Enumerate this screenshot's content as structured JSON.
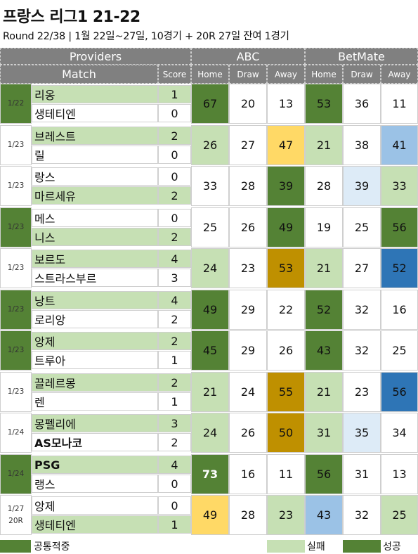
{
  "title": "프랑스 리그1 21-22",
  "subtitle": "Round 22/38  | 1월 22일~27일, 10경기 + 20R 27일 잔여 1경기",
  "headers": {
    "providers": "Providers",
    "match": "Match",
    "score": "Score",
    "abc": "ABC",
    "betmate": "BetMate",
    "home": "Home",
    "draw": "Draw",
    "away": "Away"
  },
  "colors": {
    "dark_green": "#548235",
    "light_green": "#c6e0b4",
    "yellow": "#ffd966",
    "gold": "#bf9000",
    "light_blue": "#9bc2e6",
    "pale_blue": "#ddebf7",
    "blue": "#2e75b6",
    "header_gray": "#808080"
  },
  "matches": [
    {
      "date": "1/22",
      "round": "",
      "date_bg": "#548235",
      "home": {
        "name": "리옹",
        "score": "1",
        "hl": true,
        "bold": false
      },
      "away": {
        "name": "생테티엔",
        "score": "0",
        "hl": false,
        "bold": false
      },
      "abc": [
        {
          "v": "67",
          "bg": "#548235",
          "fg": "#111"
        },
        {
          "v": "20",
          "bg": "#ffffff",
          "fg": "#111"
        },
        {
          "v": "13",
          "bg": "#ffffff",
          "fg": "#111"
        }
      ],
      "bm": [
        {
          "v": "53",
          "bg": "#548235",
          "fg": "#111"
        },
        {
          "v": "36",
          "bg": "#ffffff",
          "fg": "#111"
        },
        {
          "v": "11",
          "bg": "#ffffff",
          "fg": "#111"
        }
      ]
    },
    {
      "date": "1/23",
      "round": "",
      "date_bg": "#ffffff",
      "home": {
        "name": "브레스트",
        "score": "2",
        "hl": true,
        "bold": false
      },
      "away": {
        "name": "릴",
        "score": "0",
        "hl": false,
        "bold": false
      },
      "abc": [
        {
          "v": "26",
          "bg": "#c6e0b4",
          "fg": "#111"
        },
        {
          "v": "27",
          "bg": "#ffffff",
          "fg": "#111"
        },
        {
          "v": "47",
          "bg": "#ffd966",
          "fg": "#111"
        }
      ],
      "bm": [
        {
          "v": "21",
          "bg": "#c6e0b4",
          "fg": "#111"
        },
        {
          "v": "38",
          "bg": "#ffffff",
          "fg": "#111"
        },
        {
          "v": "41",
          "bg": "#9bc2e6",
          "fg": "#111"
        }
      ]
    },
    {
      "date": "1/23",
      "round": "",
      "date_bg": "#ffffff",
      "home": {
        "name": "랑스",
        "score": "0",
        "hl": false,
        "bold": false
      },
      "away": {
        "name": "마르세유",
        "score": "2",
        "hl": true,
        "bold": false
      },
      "abc": [
        {
          "v": "33",
          "bg": "#ffffff",
          "fg": "#111"
        },
        {
          "v": "28",
          "bg": "#ffffff",
          "fg": "#111"
        },
        {
          "v": "39",
          "bg": "#548235",
          "fg": "#111"
        }
      ],
      "bm": [
        {
          "v": "28",
          "bg": "#ffffff",
          "fg": "#111"
        },
        {
          "v": "39",
          "bg": "#ddebf7",
          "fg": "#111"
        },
        {
          "v": "33",
          "bg": "#c6e0b4",
          "fg": "#111"
        }
      ]
    },
    {
      "date": "1/23",
      "round": "",
      "date_bg": "#548235",
      "home": {
        "name": "메스",
        "score": "0",
        "hl": false,
        "bold": false
      },
      "away": {
        "name": "니스",
        "score": "2",
        "hl": true,
        "bold": false
      },
      "abc": [
        {
          "v": "25",
          "bg": "#ffffff",
          "fg": "#111"
        },
        {
          "v": "26",
          "bg": "#ffffff",
          "fg": "#111"
        },
        {
          "v": "49",
          "bg": "#548235",
          "fg": "#111"
        }
      ],
      "bm": [
        {
          "v": "19",
          "bg": "#ffffff",
          "fg": "#111"
        },
        {
          "v": "25",
          "bg": "#ffffff",
          "fg": "#111"
        },
        {
          "v": "56",
          "bg": "#548235",
          "fg": "#111"
        }
      ]
    },
    {
      "date": "1/23",
      "round": "",
      "date_bg": "#ffffff",
      "home": {
        "name": "보르도",
        "score": "4",
        "hl": true,
        "bold": false
      },
      "away": {
        "name": "스트라스부르",
        "score": "3",
        "hl": false,
        "bold": false
      },
      "abc": [
        {
          "v": "24",
          "bg": "#c6e0b4",
          "fg": "#111"
        },
        {
          "v": "23",
          "bg": "#ffffff",
          "fg": "#111"
        },
        {
          "v": "53",
          "bg": "#bf9000",
          "fg": "#111"
        }
      ],
      "bm": [
        {
          "v": "21",
          "bg": "#c6e0b4",
          "fg": "#111"
        },
        {
          "v": "27",
          "bg": "#ffffff",
          "fg": "#111"
        },
        {
          "v": "52",
          "bg": "#2e75b6",
          "fg": "#111"
        }
      ]
    },
    {
      "date": "1/23",
      "round": "",
      "date_bg": "#548235",
      "home": {
        "name": "낭트",
        "score": "4",
        "hl": true,
        "bold": false
      },
      "away": {
        "name": "로리앙",
        "score": "2",
        "hl": false,
        "bold": false
      },
      "abc": [
        {
          "v": "49",
          "bg": "#548235",
          "fg": "#111"
        },
        {
          "v": "29",
          "bg": "#ffffff",
          "fg": "#111"
        },
        {
          "v": "22",
          "bg": "#ffffff",
          "fg": "#111"
        }
      ],
      "bm": [
        {
          "v": "52",
          "bg": "#548235",
          "fg": "#111"
        },
        {
          "v": "32",
          "bg": "#ffffff",
          "fg": "#111"
        },
        {
          "v": "16",
          "bg": "#ffffff",
          "fg": "#111"
        }
      ]
    },
    {
      "date": "1/23",
      "round": "",
      "date_bg": "#548235",
      "home": {
        "name": "앙제",
        "score": "2",
        "hl": true,
        "bold": false
      },
      "away": {
        "name": "트루아",
        "score": "1",
        "hl": false,
        "bold": false
      },
      "abc": [
        {
          "v": "45",
          "bg": "#548235",
          "fg": "#111"
        },
        {
          "v": "29",
          "bg": "#ffffff",
          "fg": "#111"
        },
        {
          "v": "26",
          "bg": "#ffffff",
          "fg": "#111"
        }
      ],
      "bm": [
        {
          "v": "43",
          "bg": "#548235",
          "fg": "#111"
        },
        {
          "v": "32",
          "bg": "#ffffff",
          "fg": "#111"
        },
        {
          "v": "25",
          "bg": "#ffffff",
          "fg": "#111"
        }
      ]
    },
    {
      "date": "1/23",
      "round": "",
      "date_bg": "#ffffff",
      "home": {
        "name": "끌레르몽",
        "score": "2",
        "hl": true,
        "bold": false
      },
      "away": {
        "name": "렌",
        "score": "1",
        "hl": false,
        "bold": false
      },
      "abc": [
        {
          "v": "21",
          "bg": "#c6e0b4",
          "fg": "#111"
        },
        {
          "v": "24",
          "bg": "#ffffff",
          "fg": "#111"
        },
        {
          "v": "55",
          "bg": "#bf9000",
          "fg": "#111"
        }
      ],
      "bm": [
        {
          "v": "21",
          "bg": "#c6e0b4",
          "fg": "#111"
        },
        {
          "v": "23",
          "bg": "#ffffff",
          "fg": "#111"
        },
        {
          "v": "56",
          "bg": "#2e75b6",
          "fg": "#111"
        }
      ]
    },
    {
      "date": "1/24",
      "round": "",
      "date_bg": "#ffffff",
      "home": {
        "name": "몽펠리에",
        "score": "3",
        "hl": true,
        "bold": false
      },
      "away": {
        "name": "AS모나코",
        "score": "2",
        "hl": false,
        "bold": true
      },
      "abc": [
        {
          "v": "24",
          "bg": "#c6e0b4",
          "fg": "#111"
        },
        {
          "v": "26",
          "bg": "#ffffff",
          "fg": "#111"
        },
        {
          "v": "50",
          "bg": "#bf9000",
          "fg": "#111"
        }
      ],
      "bm": [
        {
          "v": "31",
          "bg": "#c6e0b4",
          "fg": "#111"
        },
        {
          "v": "35",
          "bg": "#ddebf7",
          "fg": "#111"
        },
        {
          "v": "34",
          "bg": "#ffffff",
          "fg": "#111"
        }
      ]
    },
    {
      "date": "1/24",
      "round": "",
      "date_bg": "#548235",
      "home": {
        "name": "PSG",
        "score": "4",
        "hl": true,
        "bold": true
      },
      "away": {
        "name": "랭스",
        "score": "0",
        "hl": false,
        "bold": false
      },
      "abc": [
        {
          "v": "73",
          "bg": "#548235",
          "fg": "#ffffff"
        },
        {
          "v": "16",
          "bg": "#ffffff",
          "fg": "#111"
        },
        {
          "v": "11",
          "bg": "#ffffff",
          "fg": "#111"
        }
      ],
      "bm": [
        {
          "v": "56",
          "bg": "#548235",
          "fg": "#111"
        },
        {
          "v": "31",
          "bg": "#ffffff",
          "fg": "#111"
        },
        {
          "v": "13",
          "bg": "#ffffff",
          "fg": "#111"
        }
      ]
    },
    {
      "date": "1/27",
      "round": "20R",
      "date_bg": "#ffffff",
      "home": {
        "name": "앙제",
        "score": "0",
        "hl": false,
        "bold": false
      },
      "away": {
        "name": "생테티엔",
        "score": "1",
        "hl": true,
        "bold": false
      },
      "abc": [
        {
          "v": "49",
          "bg": "#ffd966",
          "fg": "#111"
        },
        {
          "v": "28",
          "bg": "#ffffff",
          "fg": "#111"
        },
        {
          "v": "23",
          "bg": "#c6e0b4",
          "fg": "#111"
        }
      ],
      "bm": [
        {
          "v": "43",
          "bg": "#9bc2e6",
          "fg": "#111"
        },
        {
          "v": "32",
          "bg": "#ffffff",
          "fg": "#111"
        },
        {
          "v": "25",
          "bg": "#c6e0b4",
          "fg": "#111"
        }
      ]
    }
  ],
  "legend": {
    "common": "공통적중",
    "fail": "실패",
    "success": "성공"
  }
}
